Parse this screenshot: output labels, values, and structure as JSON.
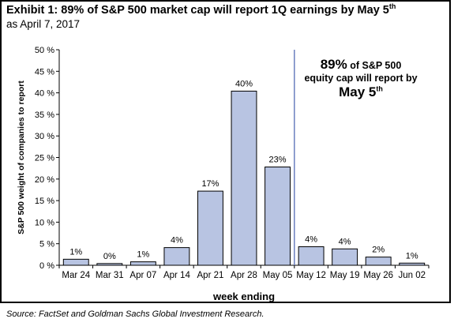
{
  "header": {
    "title_main": "Exhibit 1: 89% of S&P 500 market cap will report 1Q earnings by May 5",
    "title_sup": "th",
    "subtitle": "as April 7, 2017"
  },
  "callout": {
    "line1_big": "89%",
    "line1_small": " of S&P 500",
    "line2": "equity cap will report by",
    "line3_big": "May 5",
    "line3_sup": "th"
  },
  "source": "Source: FactSet and Goldman Sachs Global Investment Research.",
  "colors": {
    "bar_fill": "#b8c4e2",
    "bar_stroke": "#000000",
    "divider": "#6b7fbf"
  },
  "chart_data": {
    "type": "bar",
    "categories": [
      "Mar 24",
      "Mar 31",
      "Apr 07",
      "Apr 14",
      "Apr 21",
      "Apr 28",
      "May 05",
      "May 12",
      "May 19",
      "May 26",
      "Jun 02"
    ],
    "values": [
      1.4,
      0.4,
      0.8,
      4.1,
      17.2,
      40.4,
      22.8,
      4.3,
      3.8,
      1.9,
      0.5
    ],
    "data_labels": [
      "1%",
      "0%",
      "1%",
      "4%",
      "17%",
      "40%",
      "23%",
      "4%",
      "4%",
      "2%",
      "1%"
    ],
    "ylim": [
      0,
      50
    ],
    "yticks": [
      "0 %",
      "5 %",
      "10 %",
      "15 %",
      "20 %",
      "25 %",
      "30 %",
      "35 %",
      "40 %",
      "45 %",
      "50 %"
    ],
    "xlabel": "week ending",
    "ylabel": "S&P 500 weight of companies to report",
    "divider_after_category": "May 05",
    "grid": false
  }
}
